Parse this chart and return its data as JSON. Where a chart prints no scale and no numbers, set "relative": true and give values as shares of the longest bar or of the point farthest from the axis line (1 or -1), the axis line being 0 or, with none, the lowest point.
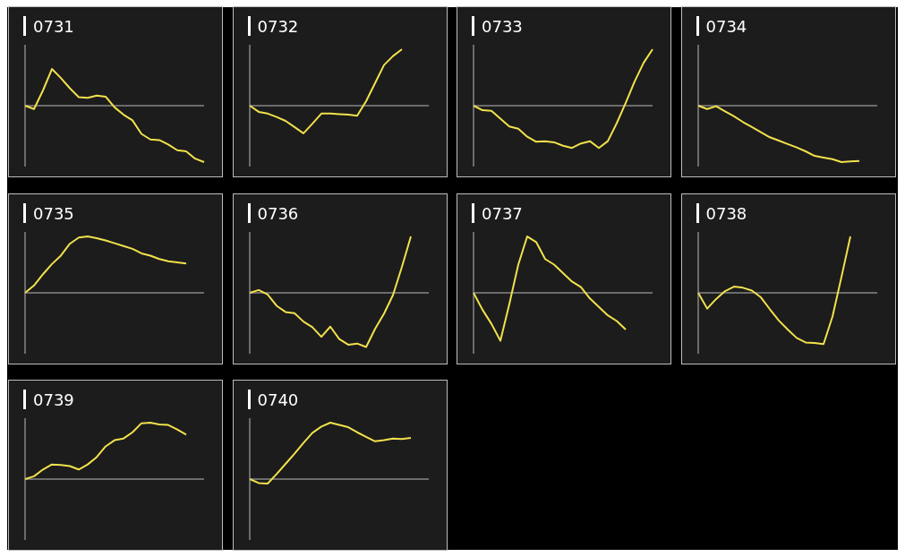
{
  "chart_data": [
    {
      "type": "line",
      "title": "0731",
      "relative": true,
      "color": "#f2e14c",
      "categories": [
        null,
        null,
        null,
        null,
        null,
        null,
        null,
        null,
        null,
        null,
        null,
        null,
        null,
        null,
        null,
        null,
        null,
        null,
        null,
        null,
        null
      ],
      "values": [
        0,
        -0.06,
        0.27,
        0.65,
        0.49,
        0.31,
        0.15,
        0.14,
        0.18,
        0.16,
        -0.03,
        -0.16,
        -0.26,
        -0.5,
        -0.6,
        -0.61,
        -0.69,
        -0.79,
        -0.81,
        -0.94,
        -1
      ]
    },
    {
      "type": "line",
      "title": "0732",
      "relative": true,
      "color": "#f2e14c",
      "categories": [
        null,
        null,
        null,
        null,
        null,
        null,
        null,
        null,
        null,
        null,
        null,
        null,
        null,
        null,
        null,
        null,
        null,
        null,
        null,
        null,
        null
      ],
      "values": [
        0,
        -0.11,
        -0.14,
        -0.2,
        -0.27,
        -0.38,
        -0.49,
        -0.32,
        -0.14,
        -0.14,
        -0.15,
        -0.16,
        -0.18,
        0.08,
        0.4,
        0.72,
        0.88,
        1,
        null,
        null,
        null
      ]
    },
    {
      "type": "line",
      "title": "0733",
      "relative": true,
      "color": "#f2e14c",
      "categories": [
        null,
        null,
        null,
        null,
        null,
        null,
        null,
        null,
        null,
        null,
        null,
        null,
        null,
        null,
        null,
        null,
        null,
        null,
        null,
        null,
        null
      ],
      "values": [
        0,
        -0.08,
        -0.09,
        -0.23,
        -0.37,
        -0.41,
        -0.55,
        -0.64,
        -0.63,
        -0.65,
        -0.71,
        -0.75,
        -0.67,
        -0.63,
        -0.75,
        -0.63,
        -0.31,
        0.05,
        0.43,
        0.76,
        1
      ]
    },
    {
      "type": "line",
      "title": "0734",
      "relative": true,
      "color": "#f2e14c",
      "categories": [
        null,
        null,
        null,
        null,
        null,
        null,
        null,
        null,
        null,
        null,
        null,
        null,
        null,
        null,
        null,
        null,
        null,
        null,
        null,
        null,
        null
      ],
      "values": [
        0,
        -0.06,
        -0.01,
        -0.1,
        -0.19,
        -0.29,
        -0.38,
        -0.47,
        -0.56,
        -0.62,
        -0.68,
        -0.74,
        -0.81,
        -0.89,
        -0.92,
        -0.95,
        -1,
        -0.99,
        -0.98,
        null,
        null
      ]
    },
    {
      "type": "line",
      "title": "0735",
      "relative": true,
      "color": "#f2e14c",
      "categories": [
        null,
        null,
        null,
        null,
        null,
        null,
        null,
        null,
        null,
        null,
        null,
        null,
        null,
        null,
        null,
        null,
        null,
        null,
        null,
        null,
        null
      ],
      "values": [
        0,
        0.13,
        0.33,
        0.51,
        0.66,
        0.87,
        0.98,
        1,
        0.97,
        0.93,
        0.88,
        0.83,
        0.78,
        0.7,
        0.66,
        0.6,
        0.56,
        0.54,
        0.52,
        null,
        null
      ]
    },
    {
      "type": "line",
      "title": "0736",
      "relative": true,
      "color": "#f2e14c",
      "categories": [
        null,
        null,
        null,
        null,
        null,
        null,
        null,
        null,
        null,
        null,
        null,
        null,
        null,
        null,
        null,
        null,
        null,
        null,
        null,
        null,
        null
      ],
      "values": [
        0,
        0.05,
        -0.03,
        -0.23,
        -0.34,
        -0.36,
        -0.51,
        -0.61,
        -0.78,
        -0.6,
        -0.82,
        -0.92,
        -0.9,
        -0.96,
        -0.64,
        -0.37,
        -0.04,
        0.46,
        1,
        null,
        null
      ]
    },
    {
      "type": "line",
      "title": "0737",
      "relative": true,
      "color": "#f2e14c",
      "categories": [
        null,
        null,
        null,
        null,
        null,
        null,
        null,
        null,
        null,
        null,
        null,
        null,
        null,
        null,
        null,
        null,
        null,
        null,
        null,
        null,
        null
      ],
      "values": [
        0,
        -0.3,
        -0.55,
        -0.85,
        -0.2,
        0.5,
        1,
        0.9,
        0.6,
        0.5,
        0.35,
        0.2,
        0.1,
        -0.1,
        -0.25,
        -0.4,
        -0.5,
        -0.65,
        null,
        null,
        null
      ]
    },
    {
      "type": "line",
      "title": "0738",
      "relative": true,
      "color": "#f2e14c",
      "categories": [
        null,
        null,
        null,
        null,
        null,
        null,
        null,
        null,
        null,
        null,
        null,
        null,
        null,
        null,
        null,
        null,
        null,
        null,
        null,
        null,
        null
      ],
      "values": [
        0,
        -0.28,
        -0.11,
        0.03,
        0.11,
        0.09,
        0.04,
        -0.08,
        -0.29,
        -0.49,
        -0.65,
        -0.8,
        -0.88,
        -0.89,
        -0.91,
        -0.42,
        0.28,
        1,
        null,
        null,
        null
      ]
    },
    {
      "type": "line",
      "title": "0739",
      "relative": true,
      "color": "#f2e14c",
      "categories": [
        null,
        null,
        null,
        null,
        null,
        null,
        null,
        null,
        null,
        null,
        null,
        null,
        null,
        null,
        null,
        null,
        null,
        null,
        null,
        null,
        null
      ],
      "values": [
        0,
        0.05,
        0.17,
        0.26,
        0.25,
        0.23,
        0.17,
        0.26,
        0.39,
        0.58,
        0.69,
        0.72,
        0.83,
        0.99,
        1,
        0.97,
        0.96,
        0.88,
        0.79,
        null,
        null
      ]
    },
    {
      "type": "line",
      "title": "0740",
      "relative": true,
      "color": "#f2e14c",
      "categories": [
        null,
        null,
        null,
        null,
        null,
        null,
        null,
        null,
        null,
        null,
        null,
        null,
        null,
        null,
        null,
        null,
        null,
        null,
        null,
        null,
        null
      ],
      "values": [
        0,
        -0.07,
        -0.08,
        0.09,
        0.27,
        0.45,
        0.64,
        0.82,
        0.93,
        1,
        0.96,
        0.92,
        0.83,
        0.75,
        0.67,
        0.69,
        0.72,
        0.71,
        0.73,
        null,
        null
      ]
    }
  ]
}
